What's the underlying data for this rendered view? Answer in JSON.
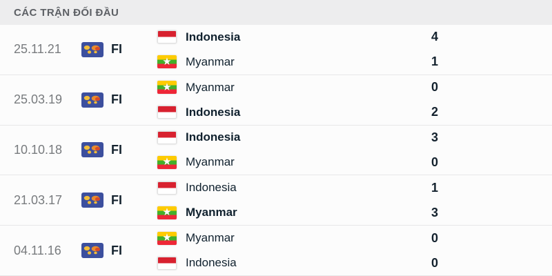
{
  "header": {
    "title": "CÁC TRẬN ĐỐI ĐẦU"
  },
  "competition": {
    "code": "FI",
    "icon": "world-map-icon"
  },
  "colors": {
    "header_bg": "#ededee",
    "header_text": "#5d6065",
    "row_bg": "#fcfcfc",
    "divider": "#e7e7e8",
    "date_text": "#787b7e",
    "team_text": "#10212e",
    "score_text": "#14222e",
    "indonesia_flag_red": "#d8212f",
    "indonesia_flag_white": "#ffffff",
    "myanmar_flag_yellow": "#fecb00",
    "myanmar_flag_green": "#43b02a",
    "myanmar_flag_red": "#ee2737",
    "comp_icon_blue": "#3c4f9e",
    "comp_icon_map_yellow": "#f2bd3a"
  },
  "matches": [
    {
      "date": "25.11.21",
      "competition": "FI",
      "teams": [
        {
          "name": "Indonesia",
          "flag": "indonesia",
          "score": "4",
          "bold": true
        },
        {
          "name": "Myanmar",
          "flag": "myanmar",
          "score": "1",
          "bold": false
        }
      ]
    },
    {
      "date": "25.03.19",
      "competition": "FI",
      "teams": [
        {
          "name": "Myanmar",
          "flag": "myanmar",
          "score": "0",
          "bold": false
        },
        {
          "name": "Indonesia",
          "flag": "indonesia",
          "score": "2",
          "bold": true
        }
      ]
    },
    {
      "date": "10.10.18",
      "competition": "FI",
      "teams": [
        {
          "name": "Indonesia",
          "flag": "indonesia",
          "score": "3",
          "bold": true
        },
        {
          "name": "Myanmar",
          "flag": "myanmar",
          "score": "0",
          "bold": false
        }
      ]
    },
    {
      "date": "21.03.17",
      "competition": "FI",
      "teams": [
        {
          "name": "Indonesia",
          "flag": "indonesia",
          "score": "1",
          "bold": false
        },
        {
          "name": "Myanmar",
          "flag": "myanmar",
          "score": "3",
          "bold": true
        }
      ]
    },
    {
      "date": "04.11.16",
      "competition": "FI",
      "teams": [
        {
          "name": "Myanmar",
          "flag": "myanmar",
          "score": "0",
          "bold": false
        },
        {
          "name": "Indonesia",
          "flag": "indonesia",
          "score": "0",
          "bold": false
        }
      ]
    }
  ]
}
